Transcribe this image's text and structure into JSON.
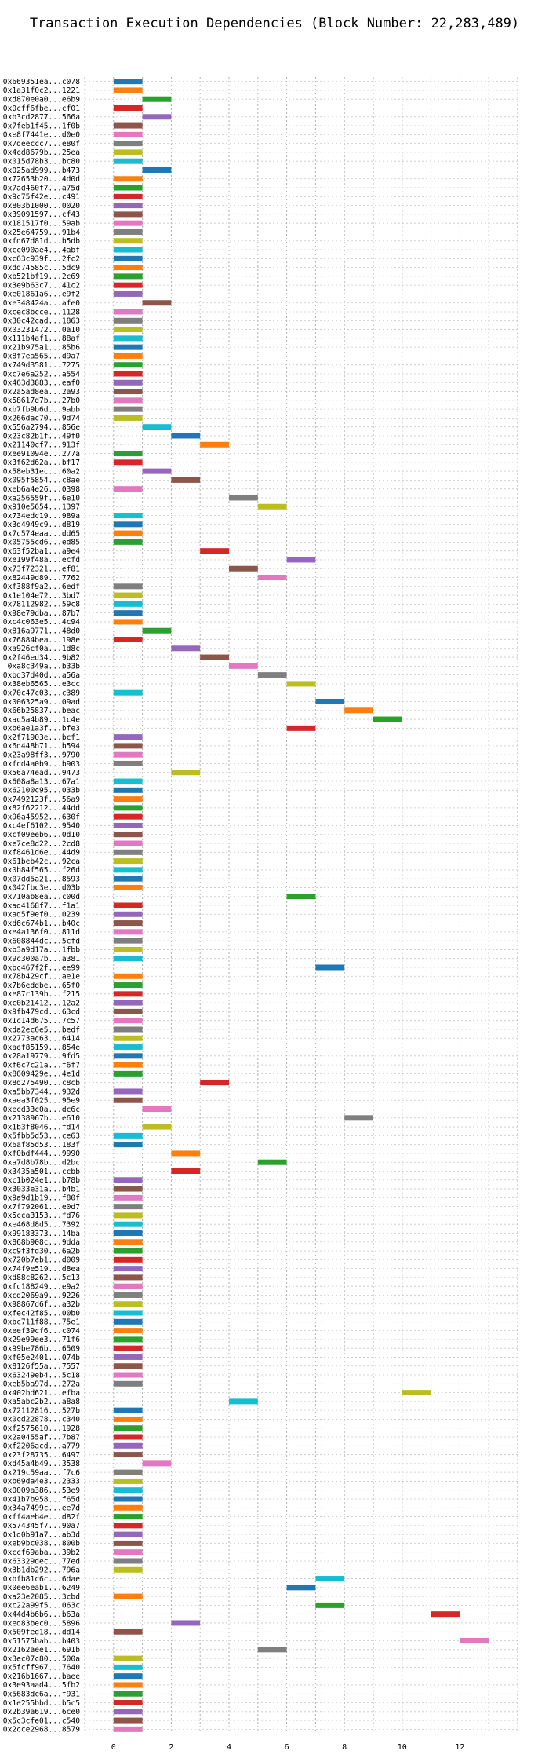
{
  "chart_data": {
    "type": "bar",
    "orientation": "horizontal",
    "title": "Transaction Execution Dependencies (Block Number: 22,283,489)",
    "xlabel": "",
    "ylabel": "",
    "xlim": [
      -1,
      14
    ],
    "x_ticks": [
      0,
      2,
      4,
      6,
      8,
      10,
      12
    ],
    "grid": true,
    "legend": "none",
    "colors": [
      "#1f77b4",
      "#ff7f0e",
      "#2ca02c",
      "#d62728",
      "#9467bd",
      "#8c564b",
      "#e377c2",
      "#7f7f7f",
      "#bcbd22",
      "#17becf"
    ],
    "bars": [
      [
        "0x669351ea...c078",
        0,
        1,
        "#1f77b4"
      ],
      [
        "0x1a31f0c2...1221",
        0,
        1,
        "#ff7f0e"
      ],
      [
        "0xd870e0a0...e6b9",
        1,
        1,
        "#2ca02c"
      ],
      [
        "0x0cff6fbe...cf01",
        0,
        1,
        "#d62728"
      ],
      [
        "0xb3cd2877...566a",
        1,
        1,
        "#9467bd"
      ],
      [
        "0x7feb1f45...1f0b",
        0,
        1,
        "#8c564b"
      ],
      [
        "0xe8f7441e...d0e0",
        0,
        1,
        "#e377c2"
      ],
      [
        "0x7deeccc7...e80f",
        0,
        1,
        "#7f7f7f"
      ],
      [
        "0x4cd8679b...25ea",
        0,
        1,
        "#bcbd22"
      ],
      [
        "0x015d78b3...bc80",
        0,
        1,
        "#17becf"
      ],
      [
        "0x025ad999...b473",
        1,
        1,
        "#1f77b4"
      ],
      [
        "0x72653b20...4d0d",
        0,
        1,
        "#ff7f0e"
      ],
      [
        "0x7ad460f7...a75d",
        0,
        1,
        "#2ca02c"
      ],
      [
        "0x9c75f42e...c491",
        0,
        1,
        "#d62728"
      ],
      [
        "0x803b1000...0020",
        0,
        1,
        "#9467bd"
      ],
      [
        "0x39091597...cf43",
        0,
        1,
        "#8c564b"
      ],
      [
        "0x181517f0...59ab",
        0,
        1,
        "#e377c2"
      ],
      [
        "0x25e64759...91b4",
        0,
        1,
        "#7f7f7f"
      ],
      [
        "0xfd67d81d...b5db",
        0,
        1,
        "#bcbd22"
      ],
      [
        "0xcc090ae4...4abf",
        0,
        1,
        "#17becf"
      ],
      [
        "0xc63c939f...2fc2",
        0,
        1,
        "#1f77b4"
      ],
      [
        "0xdd74585c...5dc9",
        0,
        1,
        "#ff7f0e"
      ],
      [
        "0xb521bf19...2c69",
        0,
        1,
        "#2ca02c"
      ],
      [
        "0x3e9b63c7...41c2",
        0,
        1,
        "#d62728"
      ],
      [
        "0xe01861a6...e9f2",
        0,
        1,
        "#9467bd"
      ],
      [
        "0xe348424a...afe0",
        1,
        1,
        "#8c564b"
      ],
      [
        "0xcec8bcce...1128",
        0,
        1,
        "#e377c2"
      ],
      [
        "0x30c42cad...1863",
        0,
        1,
        "#7f7f7f"
      ],
      [
        "0x03231472...0a10",
        0,
        1,
        "#bcbd22"
      ],
      [
        "0x111b4af1...88af",
        0,
        1,
        "#17becf"
      ],
      [
        "0x21b975a1...85b6",
        0,
        1,
        "#1f77b4"
      ],
      [
        "0x8f7ea565...d9a7",
        0,
        1,
        "#ff7f0e"
      ],
      [
        "0x749d3581...7275",
        0,
        1,
        "#2ca02c"
      ],
      [
        "0xc7e6a252...a554",
        0,
        1,
        "#d62728"
      ],
      [
        "0x463d3883...eaf0",
        0,
        1,
        "#9467bd"
      ],
      [
        "0x2a5ad8ea...2a93",
        0,
        1,
        "#8c564b"
      ],
      [
        "0x58617d7b...27b0",
        0,
        1,
        "#e377c2"
      ],
      [
        "0xb7fb9b6d...9abb",
        0,
        1,
        "#7f7f7f"
      ],
      [
        "0x266dac70...9d74",
        0,
        1,
        "#bcbd22"
      ],
      [
        "0x556a2794...856e",
        1,
        1,
        "#17becf"
      ],
      [
        "0x23c82b1f...49f0",
        2,
        1,
        "#1f77b4"
      ],
      [
        "0x21140cf7...913f",
        3,
        1,
        "#ff7f0e"
      ],
      [
        "0xee91094e...277a",
        0,
        1,
        "#2ca02c"
      ],
      [
        "0x3f62d62a...bf17",
        0,
        1,
        "#d62728"
      ],
      [
        "0x58eb31ec...60a2",
        1,
        1,
        "#9467bd"
      ],
      [
        "0x095f5854...c8ae",
        2,
        1,
        "#8c564b"
      ],
      [
        "0xeb6a4e26...0398",
        0,
        1,
        "#e377c2"
      ],
      [
        "0xa256559f...6e10",
        4,
        1,
        "#7f7f7f"
      ],
      [
        "0x910e5654...1397",
        5,
        1,
        "#bcbd22"
      ],
      [
        "0x734edc19...989a",
        0,
        1,
        "#17becf"
      ],
      [
        "0x3d4949c9...d819",
        0,
        1,
        "#1f77b4"
      ],
      [
        "0x7c574eaa...dd65",
        0,
        1,
        "#ff7f0e"
      ],
      [
        "0x05755cd6...ed85",
        0,
        1,
        "#2ca02c"
      ],
      [
        "0x63f52ba1...a9e4",
        3,
        1,
        "#d62728"
      ],
      [
        "0xe199f48a...ecfd",
        6,
        1,
        "#9467bd"
      ],
      [
        "0x73f72321...ef81",
        4,
        1,
        "#8c564b"
      ],
      [
        "0x82449d89...7762",
        5,
        1,
        "#e377c2"
      ],
      [
        "0xf388f9a2...6edf",
        0,
        1,
        "#7f7f7f"
      ],
      [
        "0x1e104e72...3bd7",
        0,
        1,
        "#bcbd22"
      ],
      [
        "0x78112982...59c8",
        0,
        1,
        "#17becf"
      ],
      [
        "0x98e79dba...87b7",
        0,
        1,
        "#1f77b4"
      ],
      [
        "0xc4c063e5...4c94",
        0,
        1,
        "#ff7f0e"
      ],
      [
        "0x816a9771...48d0",
        1,
        1,
        "#2ca02c"
      ],
      [
        "0x76884bea...198e",
        0,
        1,
        "#d62728"
      ],
      [
        "0xa926cf0a...1d8c",
        2,
        1,
        "#9467bd"
      ],
      [
        "0x2f46ed34...9b82",
        3,
        1,
        "#8c564b"
      ],
      [
        "0xa8c349a...b33b",
        4,
        1,
        "#e377c2"
      ],
      [
        "0xbd37d40d...a56a",
        5,
        1,
        "#7f7f7f"
      ],
      [
        "0x38eb6565...e3cc",
        6,
        1,
        "#bcbd22"
      ],
      [
        "0x70c47c03...c389",
        0,
        1,
        "#17becf"
      ],
      [
        "0x006325a9...09ad",
        7,
        1,
        "#1f77b4"
      ],
      [
        "0x66b25837...beac",
        8,
        1,
        "#ff7f0e"
      ],
      [
        "0xac5a4b89...1c4e",
        9,
        1,
        "#2ca02c"
      ],
      [
        "0xb6ae1a3f...bfe3",
        6,
        1,
        "#d62728"
      ],
      [
        "0x2f71903e...bcf1",
        0,
        1,
        "#9467bd"
      ],
      [
        "0x6d448b71...b594",
        0,
        1,
        "#8c564b"
      ],
      [
        "0x23a98ff3...9790",
        0,
        1,
        "#e377c2"
      ],
      [
        "0xfcd4a0b9...b903",
        0,
        1,
        "#7f7f7f"
      ],
      [
        "0x56a74ead...9473",
        2,
        1,
        "#bcbd22"
      ],
      [
        "0x608a8a13...67a1",
        0,
        1,
        "#17becf"
      ],
      [
        "0x62100c95...033b",
        0,
        1,
        "#1f77b4"
      ],
      [
        "0x7492123f...56a9",
        0,
        1,
        "#ff7f0e"
      ],
      [
        "0x82f62212...44dd",
        0,
        1,
        "#2ca02c"
      ],
      [
        "0x96a45952...630f",
        0,
        1,
        "#d62728"
      ],
      [
        "0xc4ef6102...9540",
        0,
        1,
        "#9467bd"
      ],
      [
        "0xcf09eeb6...0d10",
        0,
        1,
        "#8c564b"
      ],
      [
        "0xe7ce8d22...2cd8",
        0,
        1,
        "#e377c2"
      ],
      [
        "0xf8461d6e...44d9",
        0,
        1,
        "#7f7f7f"
      ],
      [
        "0x61beb42c...92ca",
        0,
        1,
        "#bcbd22"
      ],
      [
        "0x0b84f565...f26d",
        0,
        1,
        "#17becf"
      ],
      [
        "0x07dd5a21...8593",
        0,
        1,
        "#1f77b4"
      ],
      [
        "0x042fbc3e...d03b",
        0,
        1,
        "#ff7f0e"
      ],
      [
        "0x710ab8ea...c00d",
        6,
        1,
        "#2ca02c"
      ],
      [
        "0xad4168f7...f1a1",
        0,
        1,
        "#d62728"
      ],
      [
        "0xad5f9ef0...0239",
        0,
        1,
        "#9467bd"
      ],
      [
        "0xd6c674b1...b40c",
        0,
        1,
        "#8c564b"
      ],
      [
        "0xe4a136f0...811d",
        0,
        1,
        "#e377c2"
      ],
      [
        "0x608844dc...5cfd",
        0,
        1,
        "#7f7f7f"
      ],
      [
        "0xb3a9d17a...1fbb",
        0,
        1,
        "#bcbd22"
      ],
      [
        "0x9c300a7b...a381",
        0,
        1,
        "#17becf"
      ],
      [
        "0xbc467f2f...ee99",
        7,
        1,
        "#1f77b4"
      ],
      [
        "0x78b429cf...ae1e",
        0,
        1,
        "#ff7f0e"
      ],
      [
        "0x7b6eddbe...65f0",
        0,
        1,
        "#2ca02c"
      ],
      [
        "0xe87c139b...f215",
        0,
        1,
        "#d62728"
      ],
      [
        "0xc0b21412...12a2",
        0,
        1,
        "#9467bd"
      ],
      [
        "0x9fb479cd...63cd",
        0,
        1,
        "#8c564b"
      ],
      [
        "0x1c14d675...7c57",
        0,
        1,
        "#e377c2"
      ],
      [
        "0xda2ec6e5...bedf",
        0,
        1,
        "#7f7f7f"
      ],
      [
        "0x2773ac63...6414",
        0,
        1,
        "#bcbd22"
      ],
      [
        "0xaef85159...854e",
        0,
        1,
        "#17becf"
      ],
      [
        "0x28a19779...9fd5",
        0,
        1,
        "#1f77b4"
      ],
      [
        "0xf6c7c21a...f6f7",
        0,
        1,
        "#ff7f0e"
      ],
      [
        "0x8609429e...4e1d",
        0,
        1,
        "#2ca02c"
      ],
      [
        "0x8d275490...c8cb",
        3,
        1,
        "#d62728"
      ],
      [
        "0xa5bb7344...932d",
        0,
        1,
        "#9467bd"
      ],
      [
        "0xaea3f025...95e9",
        0,
        1,
        "#8c564b"
      ],
      [
        "0xecd33c0a...dc6c",
        1,
        1,
        "#e377c2"
      ],
      [
        "0x2138967b...e610",
        8,
        1,
        "#7f7f7f"
      ],
      [
        "0x1b3f8046...fd14",
        1,
        1,
        "#bcbd22"
      ],
      [
        "0x5fbb5d53...ce63",
        0,
        1,
        "#17becf"
      ],
      [
        "0x6af85d53...183f",
        0,
        1,
        "#1f77b4"
      ],
      [
        "0xf0bdf444...9990",
        2,
        1,
        "#ff7f0e"
      ],
      [
        "0xa7d8b78b...d2bc",
        5,
        1,
        "#2ca02c"
      ],
      [
        "0x3435a501...ccbb",
        2,
        1,
        "#d62728"
      ],
      [
        "0xc1b024e1...b78b",
        0,
        1,
        "#9467bd"
      ],
      [
        "0x3033e31a...b4b1",
        0,
        1,
        "#8c564b"
      ],
      [
        "0x9a9d1b19...f80f",
        0,
        1,
        "#e377c2"
      ],
      [
        "0x7f792061...e0d7",
        0,
        1,
        "#7f7f7f"
      ],
      [
        "0x5cca3153...fd76",
        0,
        1,
        "#bcbd22"
      ],
      [
        "0xe468d8d5...7392",
        0,
        1,
        "#17becf"
      ],
      [
        "0x99183373...14ba",
        0,
        1,
        "#1f77b4"
      ],
      [
        "0x868b908c...9dda",
        0,
        1,
        "#ff7f0e"
      ],
      [
        "0xc9f3fd30...6a2b",
        0,
        1,
        "#2ca02c"
      ],
      [
        "0x720b7eb1...d009",
        0,
        1,
        "#d62728"
      ],
      [
        "0x74f9e519...d8ea",
        0,
        1,
        "#9467bd"
      ],
      [
        "0xd88c8262...5c13",
        0,
        1,
        "#8c564b"
      ],
      [
        "0xfc188249...e9a2",
        0,
        1,
        "#e377c2"
      ],
      [
        "0xcd2069a9...9226",
        0,
        1,
        "#7f7f7f"
      ],
      [
        "0x98867d6f...a32b",
        0,
        1,
        "#bcbd22"
      ],
      [
        "0xfec42f85...00b0",
        0,
        1,
        "#17becf"
      ],
      [
        "0xbc711f88...75e1",
        0,
        1,
        "#1f77b4"
      ],
      [
        "0xeef39cf6...c074",
        0,
        1,
        "#ff7f0e"
      ],
      [
        "0x29e99ee3...71f6",
        0,
        1,
        "#2ca02c"
      ],
      [
        "0x99be786b...6509",
        0,
        1,
        "#d62728"
      ],
      [
        "0xf05e2401...074b",
        0,
        1,
        "#9467bd"
      ],
      [
        "0x8126f55a...7557",
        0,
        1,
        "#8c564b"
      ],
      [
        "0x63249eb4...5c18",
        0,
        1,
        "#e377c2"
      ],
      [
        "0xeb5ba97d...272a",
        0,
        1,
        "#7f7f7f"
      ],
      [
        "0x402bd621...efba",
        10,
        1,
        "#bcbd22"
      ],
      [
        "0xa5abc2b2...a8a8",
        4,
        1,
        "#17becf"
      ],
      [
        "0x72112816...527b",
        0,
        1,
        "#1f77b4"
      ],
      [
        "0x0cd22878...c340",
        0,
        1,
        "#ff7f0e"
      ],
      [
        "0xf2575610...1928",
        0,
        1,
        "#2ca02c"
      ],
      [
        "0x2a0455af...7b87",
        0,
        1,
        "#d62728"
      ],
      [
        "0xf2206acd...a779",
        0,
        1,
        "#9467bd"
      ],
      [
        "0x23f28735...6497",
        0,
        1,
        "#8c564b"
      ],
      [
        "0xd45a4b49...3538",
        1,
        1,
        "#e377c2"
      ],
      [
        "0x219c59aa...f7c6",
        0,
        1,
        "#7f7f7f"
      ],
      [
        "0xb69da4e3...2333",
        0,
        1,
        "#bcbd22"
      ],
      [
        "0x0009a386...53e9",
        0,
        1,
        "#17becf"
      ],
      [
        "0x41b7b958...f65d",
        0,
        1,
        "#1f77b4"
      ],
      [
        "0x34a7499c...ee7d",
        0,
        1,
        "#ff7f0e"
      ],
      [
        "0xff4aeb4e...d82f",
        0,
        1,
        "#2ca02c"
      ],
      [
        "0x574345f7...90a7",
        0,
        1,
        "#d62728"
      ],
      [
        "0x1d0b91a7...ab3d",
        0,
        1,
        "#9467bd"
      ],
      [
        "0xeb9bc038...800b",
        0,
        1,
        "#8c564b"
      ],
      [
        "0xccf69aba...39b2",
        0,
        1,
        "#e377c2"
      ],
      [
        "0x63329dec...77ed",
        0,
        1,
        "#7f7f7f"
      ],
      [
        "0x3b1db292...796a",
        0,
        1,
        "#bcbd22"
      ],
      [
        "0xbfb81c6c...6dae",
        7,
        1,
        "#17becf"
      ],
      [
        "0x0ee6eab1...6249",
        6,
        1,
        "#1f77b4"
      ],
      [
        "0xa23e2085...3cbd",
        0,
        1,
        "#ff7f0e"
      ],
      [
        "0xc22a99f5...063c",
        7,
        1,
        "#2ca02c"
      ],
      [
        "0x44d4b6b6...b63a",
        11,
        1,
        "#d62728"
      ],
      [
        "0xed83bec0...5896",
        2,
        1,
        "#9467bd"
      ],
      [
        "0x509fed18...dd14",
        0,
        1,
        "#8c564b"
      ],
      [
        "0x51575bab...b403",
        12,
        1,
        "#e377c2"
      ],
      [
        "0x2162aee1...691b",
        5,
        1,
        "#7f7f7f"
      ],
      [
        "0x3ec07c80...500a",
        0,
        1,
        "#bcbd22"
      ],
      [
        "0x5fcff967...7640",
        0,
        1,
        "#17becf"
      ],
      [
        "0x216b1667...baee",
        0,
        1,
        "#1f77b4"
      ],
      [
        "0x3e93aad4...5fb2",
        0,
        1,
        "#ff7f0e"
      ],
      [
        "0x5683dc6a...f931",
        0,
        1,
        "#2ca02c"
      ],
      [
        "0x1e255bbd...b5c5",
        0,
        1,
        "#d62728"
      ],
      [
        "0x2b39a619...6ce0",
        0,
        1,
        "#9467bd"
      ],
      [
        "0x5c3cfe01...c540",
        0,
        1,
        "#8c564b"
      ],
      [
        "0x2cce2968...8579",
        0,
        1,
        "#e377c2"
      ]
    ]
  }
}
